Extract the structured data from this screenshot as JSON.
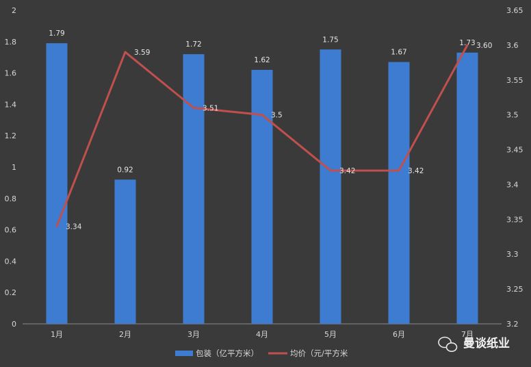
{
  "chart_data": {
    "type": "bar",
    "categories": [
      "1月",
      "2月",
      "3月",
      "4月",
      "5月",
      "6月",
      "7月"
    ],
    "series": [
      {
        "name": "包装（亿平方米）",
        "type": "bar",
        "axis": "left",
        "values": [
          1.79,
          0.92,
          1.72,
          1.62,
          1.75,
          1.67,
          1.73
        ],
        "labels": [
          "1.79",
          "0.92",
          "1.72",
          "1.62",
          "1.75",
          "1.67",
          "1.73"
        ],
        "color": "#3d7cd0"
      },
      {
        "name": "均价（元/平方米",
        "type": "line",
        "axis": "right",
        "values": [
          3.34,
          3.59,
          3.51,
          3.5,
          3.42,
          3.42,
          3.6
        ],
        "labels": [
          "3.34",
          "3.59",
          "3.51",
          "3.5",
          "3.42",
          "3.42",
          "3.60"
        ],
        "color": "#c0504d"
      }
    ],
    "y_left": {
      "lim": [
        0,
        2
      ],
      "ticks": [
        "0",
        "0.2",
        "0.4",
        "0.6",
        "0.8",
        "1",
        "1.2",
        "1.4",
        "1.6",
        "1.8",
        "2"
      ]
    },
    "y_right": {
      "lim": [
        3.2,
        3.65
      ],
      "ticks": [
        "3.2",
        "3.25",
        "3.3",
        "3.35",
        "3.4",
        "3.45",
        "3.5",
        "3.55",
        "3.6",
        "3.65"
      ]
    },
    "grid": false,
    "legend": "bottom-center",
    "watermark": "曼谈纸业",
    "colors": {
      "background": "#3a3a3a",
      "axis": "#8a8a8a",
      "text": "#d8d8d8"
    }
  }
}
